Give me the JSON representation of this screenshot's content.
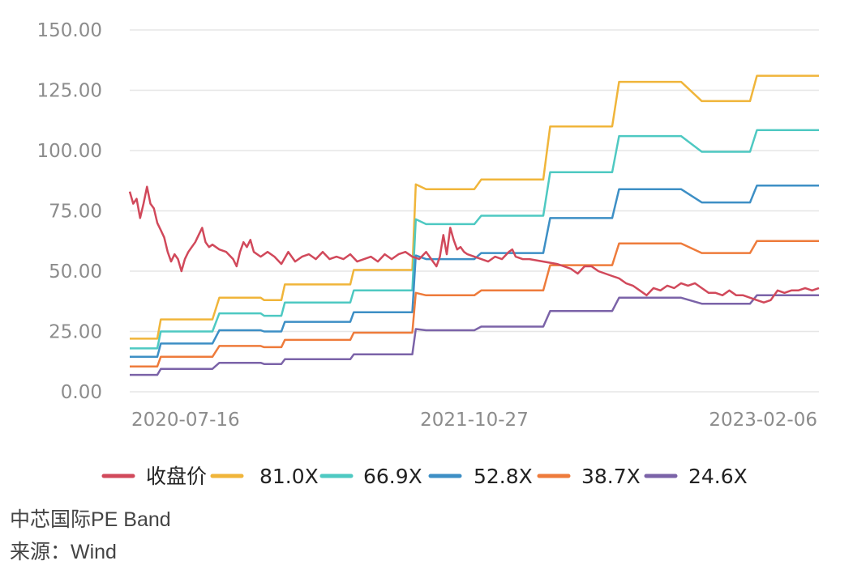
{
  "chart_data": {
    "type": "line",
    "title": "中芯国际PE Band",
    "source": "来源：Wind",
    "ylim": [
      0,
      150
    ],
    "y_ticks": [
      "150.00",
      "125.00",
      "100.00",
      "75.00",
      "50.00",
      "25.00",
      "0.00"
    ],
    "y_tick_values": [
      150,
      125,
      100,
      75,
      50,
      25,
      0
    ],
    "x_ticks": [
      "2020-07-16",
      "2021-10-27",
      "2023-02-06"
    ],
    "x_tick_positions": [
      0.0,
      0.5,
      1.0
    ],
    "grid": true,
    "legend_position": "bottom",
    "x_range": [
      0,
      1
    ],
    "series": [
      {
        "name": "收盘价",
        "color": "#d1495b",
        "points": [
          [
            0.0,
            83
          ],
          [
            0.005,
            78
          ],
          [
            0.01,
            80
          ],
          [
            0.015,
            72
          ],
          [
            0.02,
            78
          ],
          [
            0.025,
            85
          ],
          [
            0.03,
            78
          ],
          [
            0.035,
            76
          ],
          [
            0.04,
            70
          ],
          [
            0.045,
            67
          ],
          [
            0.05,
            64
          ],
          [
            0.055,
            58
          ],
          [
            0.06,
            54
          ],
          [
            0.065,
            57
          ],
          [
            0.07,
            55
          ],
          [
            0.075,
            50
          ],
          [
            0.08,
            55
          ],
          [
            0.085,
            58
          ],
          [
            0.09,
            60
          ],
          [
            0.095,
            62
          ],
          [
            0.1,
            65
          ],
          [
            0.105,
            68
          ],
          [
            0.11,
            62
          ],
          [
            0.115,
            60
          ],
          [
            0.12,
            61
          ],
          [
            0.13,
            59
          ],
          [
            0.14,
            58
          ],
          [
            0.15,
            55
          ],
          [
            0.155,
            52
          ],
          [
            0.16,
            58
          ],
          [
            0.165,
            62
          ],
          [
            0.17,
            60
          ],
          [
            0.175,
            63
          ],
          [
            0.18,
            58
          ],
          [
            0.19,
            56
          ],
          [
            0.2,
            58
          ],
          [
            0.21,
            56
          ],
          [
            0.22,
            53
          ],
          [
            0.23,
            58
          ],
          [
            0.24,
            54
          ],
          [
            0.25,
            56
          ],
          [
            0.26,
            57
          ],
          [
            0.27,
            55
          ],
          [
            0.28,
            58
          ],
          [
            0.29,
            55
          ],
          [
            0.3,
            56
          ],
          [
            0.31,
            55
          ],
          [
            0.32,
            57
          ],
          [
            0.33,
            54
          ],
          [
            0.34,
            55
          ],
          [
            0.35,
            56
          ],
          [
            0.36,
            54
          ],
          [
            0.37,
            57
          ],
          [
            0.38,
            55
          ],
          [
            0.39,
            57
          ],
          [
            0.4,
            58
          ],
          [
            0.41,
            56
          ],
          [
            0.42,
            55
          ],
          [
            0.43,
            58
          ],
          [
            0.44,
            54
          ],
          [
            0.445,
            52
          ],
          [
            0.45,
            56
          ],
          [
            0.455,
            65
          ],
          [
            0.46,
            57
          ],
          [
            0.465,
            68
          ],
          [
            0.47,
            63
          ],
          [
            0.475,
            59
          ],
          [
            0.48,
            60
          ],
          [
            0.485,
            58
          ],
          [
            0.49,
            57
          ],
          [
            0.5,
            56
          ],
          [
            0.51,
            55
          ],
          [
            0.52,
            54
          ],
          [
            0.53,
            56
          ],
          [
            0.54,
            55
          ],
          [
            0.55,
            58
          ],
          [
            0.555,
            59
          ],
          [
            0.56,
            56
          ],
          [
            0.57,
            55
          ],
          [
            0.58,
            55
          ],
          [
            0.6,
            54
          ],
          [
            0.62,
            53
          ],
          [
            0.64,
            51
          ],
          [
            0.65,
            49
          ],
          [
            0.66,
            52
          ],
          [
            0.67,
            52
          ],
          [
            0.68,
            50
          ],
          [
            0.69,
            49
          ],
          [
            0.7,
            48
          ],
          [
            0.71,
            47
          ],
          [
            0.72,
            45
          ],
          [
            0.73,
            44
          ],
          [
            0.74,
            42
          ],
          [
            0.75,
            40
          ],
          [
            0.76,
            43
          ],
          [
            0.77,
            42
          ],
          [
            0.78,
            44
          ],
          [
            0.79,
            43
          ],
          [
            0.8,
            45
          ],
          [
            0.81,
            44
          ],
          [
            0.82,
            45
          ],
          [
            0.83,
            43
          ],
          [
            0.84,
            41
          ],
          [
            0.85,
            41
          ],
          [
            0.86,
            40
          ],
          [
            0.87,
            42
          ],
          [
            0.88,
            40
          ],
          [
            0.89,
            40
          ],
          [
            0.9,
            39
          ],
          [
            0.91,
            38
          ],
          [
            0.92,
            37
          ],
          [
            0.93,
            38
          ],
          [
            0.94,
            42
          ],
          [
            0.95,
            41
          ],
          [
            0.96,
            42
          ],
          [
            0.97,
            42
          ],
          [
            0.98,
            43
          ],
          [
            0.99,
            42
          ],
          [
            1.0,
            43
          ]
        ]
      },
      {
        "name": "81.0X",
        "color": "#f0b53a",
        "points": [
          [
            0.0,
            22
          ],
          [
            0.04,
            22
          ],
          [
            0.045,
            30
          ],
          [
            0.12,
            30
          ],
          [
            0.13,
            39
          ],
          [
            0.19,
            39
          ],
          [
            0.195,
            38
          ],
          [
            0.22,
            38
          ],
          [
            0.225,
            44.5
          ],
          [
            0.32,
            44.5
          ],
          [
            0.325,
            50.5
          ],
          [
            0.41,
            50.5
          ],
          [
            0.415,
            86
          ],
          [
            0.43,
            84
          ],
          [
            0.5,
            84
          ],
          [
            0.51,
            88
          ],
          [
            0.6,
            88
          ],
          [
            0.61,
            110
          ],
          [
            0.7,
            110
          ],
          [
            0.71,
            128.5
          ],
          [
            0.8,
            128.5
          ],
          [
            0.83,
            120.5
          ],
          [
            0.9,
            120.5
          ],
          [
            0.91,
            131
          ],
          [
            1.0,
            131
          ]
        ]
      },
      {
        "name": "66.9X",
        "color": "#4ec9c2",
        "points": [
          [
            0.0,
            18
          ],
          [
            0.04,
            18
          ],
          [
            0.045,
            25
          ],
          [
            0.12,
            25
          ],
          [
            0.13,
            32.5
          ],
          [
            0.19,
            32.5
          ],
          [
            0.195,
            31.5
          ],
          [
            0.22,
            31.5
          ],
          [
            0.225,
            37
          ],
          [
            0.32,
            37
          ],
          [
            0.325,
            42
          ],
          [
            0.41,
            42
          ],
          [
            0.415,
            71.5
          ],
          [
            0.43,
            69.5
          ],
          [
            0.5,
            69.5
          ],
          [
            0.51,
            73
          ],
          [
            0.6,
            73
          ],
          [
            0.61,
            91
          ],
          [
            0.7,
            91
          ],
          [
            0.71,
            106
          ],
          [
            0.8,
            106
          ],
          [
            0.83,
            99.5
          ],
          [
            0.9,
            99.5
          ],
          [
            0.91,
            108.5
          ],
          [
            1.0,
            108.5
          ]
        ]
      },
      {
        "name": "52.8X",
        "color": "#3d8fc5",
        "points": [
          [
            0.0,
            14.5
          ],
          [
            0.04,
            14.5
          ],
          [
            0.045,
            20
          ],
          [
            0.12,
            20
          ],
          [
            0.13,
            25.5
          ],
          [
            0.19,
            25.5
          ],
          [
            0.195,
            25
          ],
          [
            0.22,
            25
          ],
          [
            0.225,
            29
          ],
          [
            0.32,
            29
          ],
          [
            0.325,
            33
          ],
          [
            0.41,
            33
          ],
          [
            0.415,
            56.5
          ],
          [
            0.43,
            55
          ],
          [
            0.5,
            55
          ],
          [
            0.51,
            57.5
          ],
          [
            0.6,
            57.5
          ],
          [
            0.61,
            72
          ],
          [
            0.7,
            72
          ],
          [
            0.71,
            84
          ],
          [
            0.8,
            84
          ],
          [
            0.83,
            78.5
          ],
          [
            0.9,
            78.5
          ],
          [
            0.91,
            85.5
          ],
          [
            1.0,
            85.5
          ]
        ]
      },
      {
        "name": "38.7X",
        "color": "#ee7b3b",
        "points": [
          [
            0.0,
            10.5
          ],
          [
            0.04,
            10.5
          ],
          [
            0.045,
            14.5
          ],
          [
            0.12,
            14.5
          ],
          [
            0.13,
            19
          ],
          [
            0.19,
            19
          ],
          [
            0.195,
            18.5
          ],
          [
            0.22,
            18.5
          ],
          [
            0.225,
            21.5
          ],
          [
            0.32,
            21.5
          ],
          [
            0.325,
            24.5
          ],
          [
            0.41,
            24.5
          ],
          [
            0.415,
            41
          ],
          [
            0.43,
            40
          ],
          [
            0.5,
            40
          ],
          [
            0.51,
            42
          ],
          [
            0.6,
            42
          ],
          [
            0.61,
            52.5
          ],
          [
            0.7,
            52.5
          ],
          [
            0.71,
            61.5
          ],
          [
            0.8,
            61.5
          ],
          [
            0.83,
            57.5
          ],
          [
            0.9,
            57.5
          ],
          [
            0.91,
            62.5
          ],
          [
            1.0,
            62.5
          ]
        ]
      },
      {
        "name": "24.6X",
        "color": "#7b63a8",
        "points": [
          [
            0.0,
            7
          ],
          [
            0.04,
            7
          ],
          [
            0.045,
            9.5
          ],
          [
            0.12,
            9.5
          ],
          [
            0.13,
            12
          ],
          [
            0.19,
            12
          ],
          [
            0.195,
            11.5
          ],
          [
            0.22,
            11.5
          ],
          [
            0.225,
            13.5
          ],
          [
            0.32,
            13.5
          ],
          [
            0.325,
            15.5
          ],
          [
            0.41,
            15.5
          ],
          [
            0.415,
            26
          ],
          [
            0.43,
            25.5
          ],
          [
            0.5,
            25.5
          ],
          [
            0.51,
            27
          ],
          [
            0.6,
            27
          ],
          [
            0.61,
            33.5
          ],
          [
            0.7,
            33.5
          ],
          [
            0.71,
            39
          ],
          [
            0.8,
            39
          ],
          [
            0.83,
            36.5
          ],
          [
            0.9,
            36.5
          ],
          [
            0.91,
            40
          ],
          [
            1.0,
            40
          ]
        ]
      }
    ]
  }
}
